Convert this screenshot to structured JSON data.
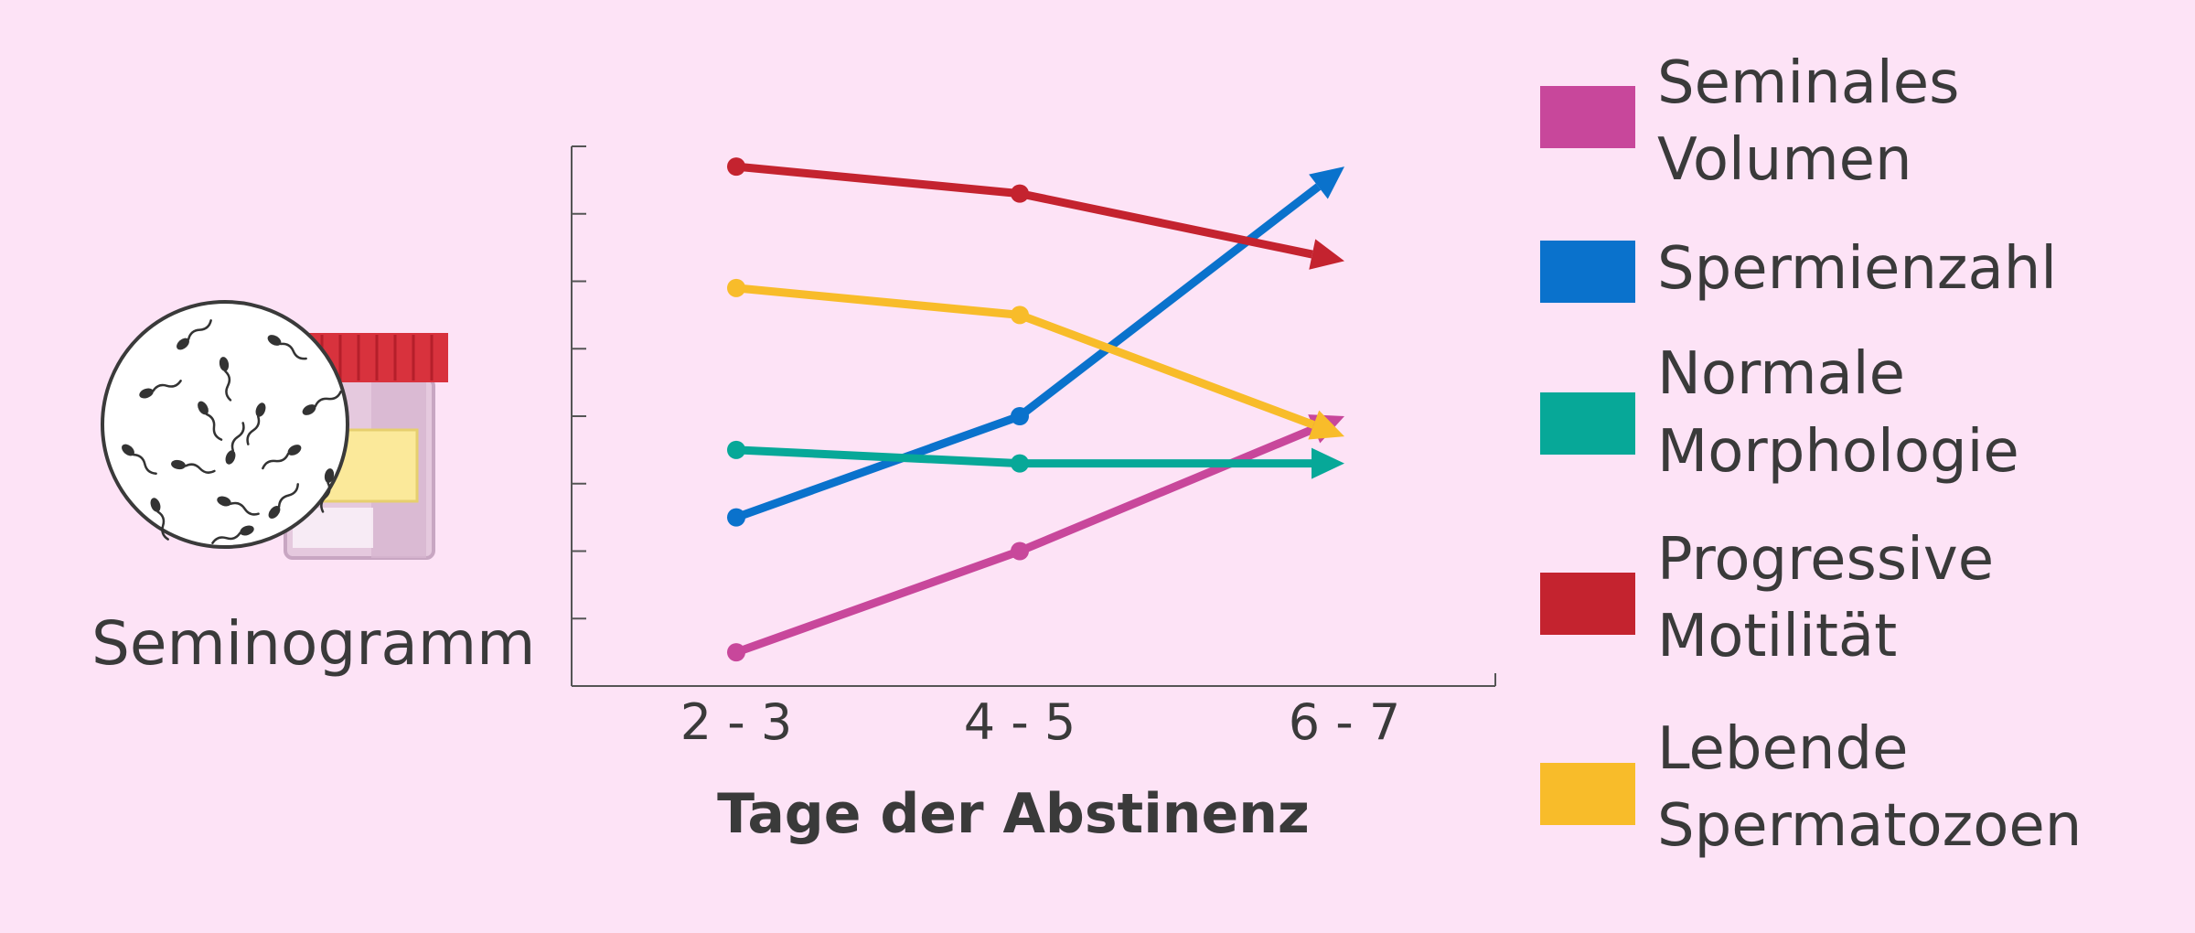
{
  "illustration": {
    "caption": "Seminogramm"
  },
  "chart_data": {
    "type": "line",
    "title": "",
    "xlabel": "Tage der Abstinenz",
    "ylabel": "",
    "categories": [
      "2 - 3",
      "4 - 5",
      "6 - 7"
    ],
    "ylim": [
      0,
      8
    ],
    "y_ticks": 8,
    "grid": false,
    "legend_position": "right",
    "series": [
      {
        "name": "Seminales Volumen",
        "label_lines": [
          "Seminales",
          "Volumen"
        ],
        "color": "#c8479b",
        "values": [
          0.5,
          2.0,
          4.0
        ]
      },
      {
        "name": "Spermienzahl",
        "label_lines": [
          "Spermienzahl"
        ],
        "color": "#0a72cc",
        "values": [
          2.5,
          4.0,
          7.7
        ]
      },
      {
        "name": "Normale Morphologie",
        "label_lines": [
          "Normale",
          "Morphologie"
        ],
        "color": "#07a898",
        "values": [
          3.5,
          3.3,
          3.3
        ]
      },
      {
        "name": "Progressive Motilität",
        "label_lines": [
          "Progressive",
          "Motilität"
        ],
        "color": "#c4232f",
        "values": [
          7.7,
          7.3,
          6.3
        ]
      },
      {
        "name": "Lebende Spermatozoen",
        "label_lines": [
          "Lebende",
          "Spermatozoen"
        ],
        "color": "#f8bc2a",
        "values": [
          5.9,
          5.5,
          3.7
        ]
      }
    ]
  }
}
